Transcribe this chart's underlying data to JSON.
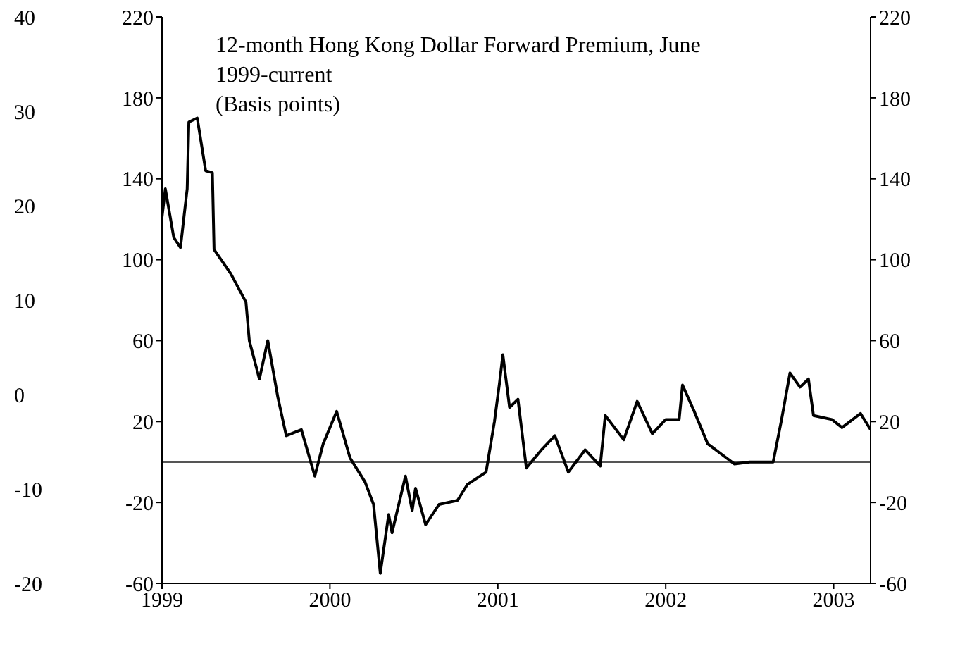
{
  "chart_data": {
    "type": "line",
    "title": "12-month Hong Kong Dollar Forward Premium, June 1999-current",
    "subtitle": "(Basis points)",
    "x": [
      1999.0,
      1999.02,
      1999.07,
      1999.11,
      1999.15,
      1999.16,
      1999.21,
      1999.26,
      1999.3,
      1999.31,
      1999.41,
      1999.5,
      1999.52,
      1999.58,
      1999.63,
      1999.69,
      1999.74,
      1999.83,
      1999.91,
      1999.96,
      2000.04,
      2000.12,
      2000.21,
      2000.26,
      2000.3,
      2000.35,
      2000.37,
      2000.45,
      2000.49,
      2000.51,
      2000.57,
      2000.65,
      2000.76,
      2000.82,
      2000.93,
      2000.98,
      2001.01,
      2001.03,
      2001.07,
      2001.12,
      2001.17,
      2001.26,
      2001.34,
      2001.42,
      2001.52,
      2001.61,
      2001.64,
      2001.75,
      2001.83,
      2001.92,
      2002.0,
      2002.08,
      2002.1,
      2002.17,
      2002.25,
      2002.33,
      2002.41,
      2002.5,
      2002.64,
      2002.69,
      2002.74,
      2002.8,
      2002.85,
      2002.88,
      2002.99,
      2003.05,
      2003.16,
      2003.22
    ],
    "series": [
      {
        "color": "#000000",
        "values": [
          121,
          135,
          111,
          106,
          135,
          168,
          170,
          144,
          143,
          105,
          93,
          79,
          60,
          41,
          60,
          32,
          13,
          16,
          -7,
          9,
          25,
          2,
          -10,
          -21,
          -55,
          -26,
          -35,
          -7,
          -24,
          -13,
          -31,
          -21,
          -19,
          -11,
          -5,
          20,
          39,
          53,
          27,
          31,
          -3,
          6,
          13,
          -5,
          6,
          -2,
          23,
          11,
          30,
          14,
          21,
          21,
          38,
          25,
          9,
          4,
          -1,
          0,
          0,
          21,
          44,
          37,
          41,
          23,
          21,
          17,
          24,
          16
        ]
      }
    ],
    "xlim": [
      1999,
      2003.22
    ],
    "xticks": [
      1999,
      2000,
      2001,
      2002,
      2003
    ],
    "ylim": [
      -60,
      220
    ],
    "yticks": [
      -60,
      -20,
      20,
      60,
      100,
      140,
      180,
      220
    ],
    "y2lim": [
      -60,
      220
    ],
    "y2ticks": [
      -60,
      -20,
      20,
      60,
      100,
      140,
      180,
      220
    ],
    "y3lim": [
      -20,
      40
    ],
    "y3ticks": [
      -20,
      -10,
      0,
      10,
      20,
      30,
      40
    ],
    "ref_lines": [
      {
        "axis": "y",
        "value": 0,
        "color": "#555555"
      }
    ],
    "marker": "none",
    "line_style": "solid"
  }
}
